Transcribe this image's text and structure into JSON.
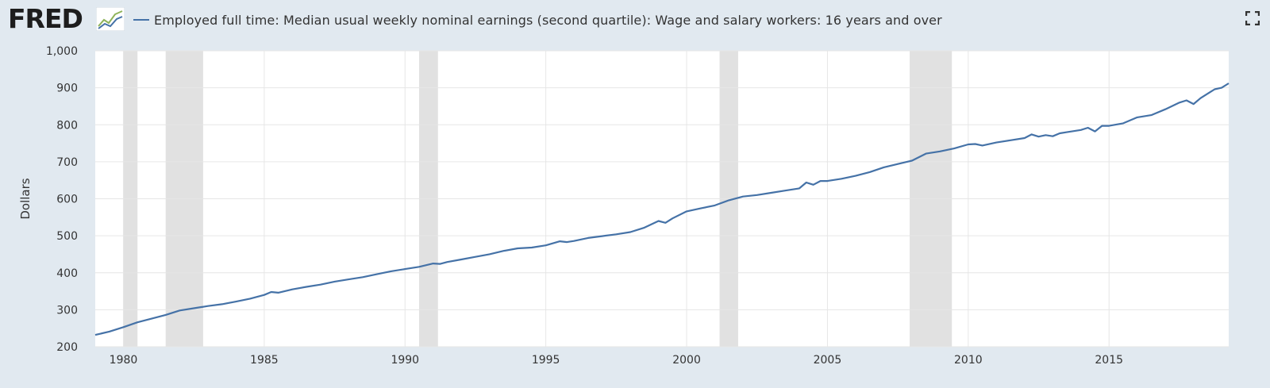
{
  "header": {
    "logo_text": "FRED",
    "logo_icon": "fred-chart-logo-icon",
    "fullscreen_icon": "fullscreen-icon"
  },
  "colors": {
    "line": "#4572a7",
    "recession": "#e1e1e1",
    "background": "#e1e9f0",
    "plot_bg": "#ffffff"
  },
  "chart_data": {
    "type": "line",
    "title": "",
    "xlabel": "",
    "ylabel": "Dollars",
    "xlim": [
      1979.0,
      2019.25
    ],
    "ylim": [
      200,
      1000
    ],
    "grid": true,
    "legend_position": "top-left",
    "x_ticks": [
      1980,
      1985,
      1990,
      1995,
      2000,
      2005,
      2010,
      2015
    ],
    "y_ticks": [
      200,
      300,
      400,
      500,
      600,
      700,
      800,
      900,
      1000
    ],
    "y_tick_labels": [
      "200",
      "300",
      "400",
      "500",
      "600",
      "700",
      "800",
      "900",
      "1,000"
    ],
    "recessions": [
      [
        1980.0,
        1980.5
      ],
      [
        1981.5,
        1982.83
      ],
      [
        1990.5,
        1991.17
      ],
      [
        2001.17,
        2001.83
      ],
      [
        2007.92,
        2009.42
      ]
    ],
    "series": [
      {
        "name": "Employed full time: Median usual weekly nominal earnings (second quartile): Wage and salary workers: 16 years and over",
        "points": [
          [
            1979.0,
            232
          ],
          [
            1979.5,
            241
          ],
          [
            1980.0,
            253
          ],
          [
            1980.5,
            266
          ],
          [
            1981.0,
            276
          ],
          [
            1981.5,
            286
          ],
          [
            1982.0,
            298
          ],
          [
            1982.5,
            304
          ],
          [
            1983.0,
            310
          ],
          [
            1983.5,
            315
          ],
          [
            1984.0,
            322
          ],
          [
            1984.5,
            330
          ],
          [
            1985.0,
            340
          ],
          [
            1985.25,
            348
          ],
          [
            1985.5,
            346
          ],
          [
            1986.0,
            355
          ],
          [
            1986.5,
            362
          ],
          [
            1987.0,
            368
          ],
          [
            1987.5,
            376
          ],
          [
            1988.0,
            382
          ],
          [
            1988.5,
            388
          ],
          [
            1989.0,
            396
          ],
          [
            1989.5,
            404
          ],
          [
            1990.0,
            410
          ],
          [
            1990.5,
            416
          ],
          [
            1991.0,
            425
          ],
          [
            1991.25,
            424
          ],
          [
            1991.5,
            429
          ],
          [
            1992.0,
            436
          ],
          [
            1992.5,
            443
          ],
          [
            1993.0,
            450
          ],
          [
            1993.5,
            459
          ],
          [
            1994.0,
            466
          ],
          [
            1994.5,
            468
          ],
          [
            1995.0,
            474
          ],
          [
            1995.5,
            485
          ],
          [
            1995.75,
            483
          ],
          [
            1996.0,
            486
          ],
          [
            1996.5,
            494
          ],
          [
            1997.0,
            499
          ],
          [
            1997.5,
            504
          ],
          [
            1998.0,
            510
          ],
          [
            1998.5,
            522
          ],
          [
            1999.0,
            540
          ],
          [
            1999.25,
            535
          ],
          [
            1999.5,
            547
          ],
          [
            2000.0,
            566
          ],
          [
            2000.5,
            574
          ],
          [
            2001.0,
            582
          ],
          [
            2001.5,
            596
          ],
          [
            2002.0,
            606
          ],
          [
            2002.5,
            610
          ],
          [
            2003.0,
            616
          ],
          [
            2003.5,
            622
          ],
          [
            2004.0,
            628
          ],
          [
            2004.25,
            644
          ],
          [
            2004.5,
            638
          ],
          [
            2004.75,
            648
          ],
          [
            2005.0,
            648
          ],
          [
            2005.5,
            654
          ],
          [
            2006.0,
            662
          ],
          [
            2006.5,
            672
          ],
          [
            2007.0,
            685
          ],
          [
            2007.5,
            694
          ],
          [
            2008.0,
            703
          ],
          [
            2008.5,
            722
          ],
          [
            2009.0,
            728
          ],
          [
            2009.5,
            736
          ],
          [
            2010.0,
            747
          ],
          [
            2010.25,
            748
          ],
          [
            2010.5,
            744
          ],
          [
            2011.0,
            752
          ],
          [
            2011.5,
            758
          ],
          [
            2012.0,
            764
          ],
          [
            2012.25,
            774
          ],
          [
            2012.5,
            768
          ],
          [
            2012.75,
            772
          ],
          [
            2013.0,
            769
          ],
          [
            2013.25,
            777
          ],
          [
            2013.5,
            780
          ],
          [
            2014.0,
            786
          ],
          [
            2014.25,
            792
          ],
          [
            2014.5,
            782
          ],
          [
            2014.75,
            797
          ],
          [
            2015.0,
            797
          ],
          [
            2015.5,
            804
          ],
          [
            2016.0,
            820
          ],
          [
            2016.5,
            826
          ],
          [
            2017.0,
            842
          ],
          [
            2017.5,
            860
          ],
          [
            2017.75,
            866
          ],
          [
            2018.0,
            856
          ],
          [
            2018.25,
            872
          ],
          [
            2018.5,
            884
          ],
          [
            2018.75,
            896
          ],
          [
            2019.0,
            900
          ],
          [
            2019.25,
            912
          ]
        ]
      }
    ]
  }
}
